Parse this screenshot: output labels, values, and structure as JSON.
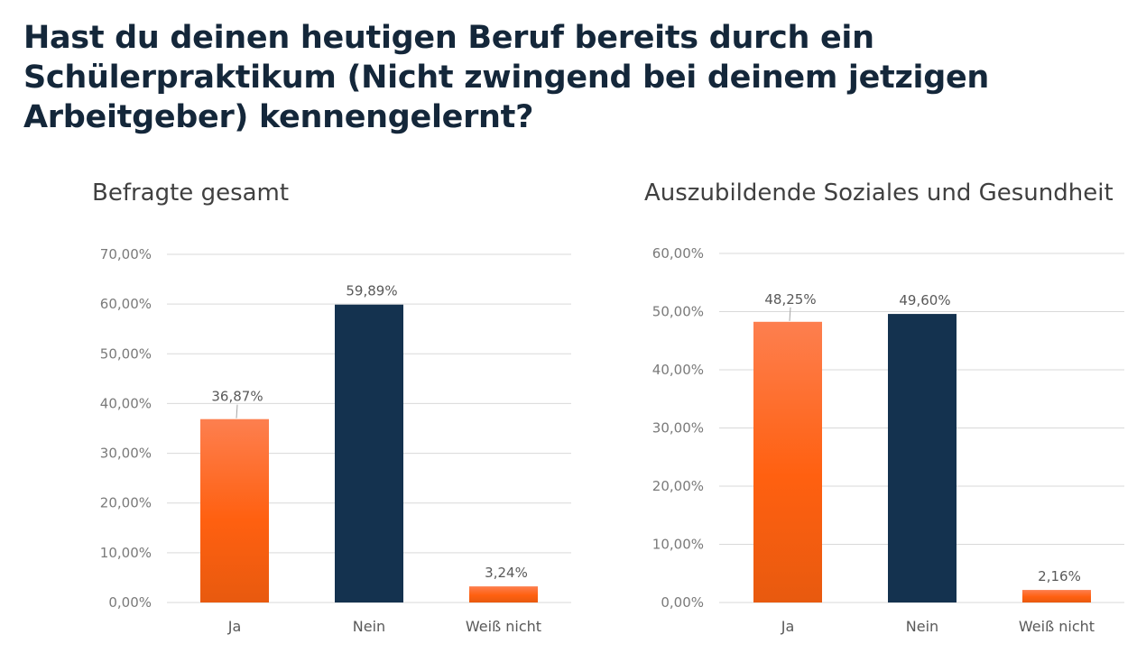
{
  "title": "Hast du deinen heutigen Beruf bereits durch ein Schülerpraktikum (Nicht zwingend bei deinem jetzigen Arbeitgeber) kennengelernt?",
  "colors": {
    "orange_top": "#fd7f4f",
    "orange_bottom": "#e85a0f",
    "navy": "#14324f"
  },
  "chart_data": [
    {
      "type": "bar",
      "title": "Befragte gesamt",
      "categories": [
        "Ja",
        "Nein",
        "Weiß nicht"
      ],
      "values": [
        36.87,
        59.89,
        3.24
      ],
      "data_labels": [
        "36,87%",
        "59,89%",
        "3,24%"
      ],
      "bar_colors": [
        "orange",
        "navy",
        "orange"
      ],
      "ylim": [
        0,
        70
      ],
      "yticks": [
        "0,00%",
        "10,00%",
        "20,00%",
        "30,00%",
        "40,00%",
        "50,00%",
        "60,00%",
        "70,00%"
      ],
      "grid": true,
      "xlabel": "",
      "ylabel": ""
    },
    {
      "type": "bar",
      "title": "Auszubildende Soziales und Gesundheit",
      "categories": [
        "Ja",
        "Nein",
        "Weiß nicht"
      ],
      "values": [
        48.25,
        49.6,
        2.16
      ],
      "data_labels": [
        "48,25%",
        "49,60%",
        "2,16%"
      ],
      "bar_colors": [
        "orange",
        "navy",
        "orange"
      ],
      "ylim": [
        0,
        60
      ],
      "yticks": [
        "0,00%",
        "10,00%",
        "20,00%",
        "30,00%",
        "40,00%",
        "50,00%",
        "60,00%"
      ],
      "grid": true,
      "xlabel": "",
      "ylabel": ""
    }
  ]
}
